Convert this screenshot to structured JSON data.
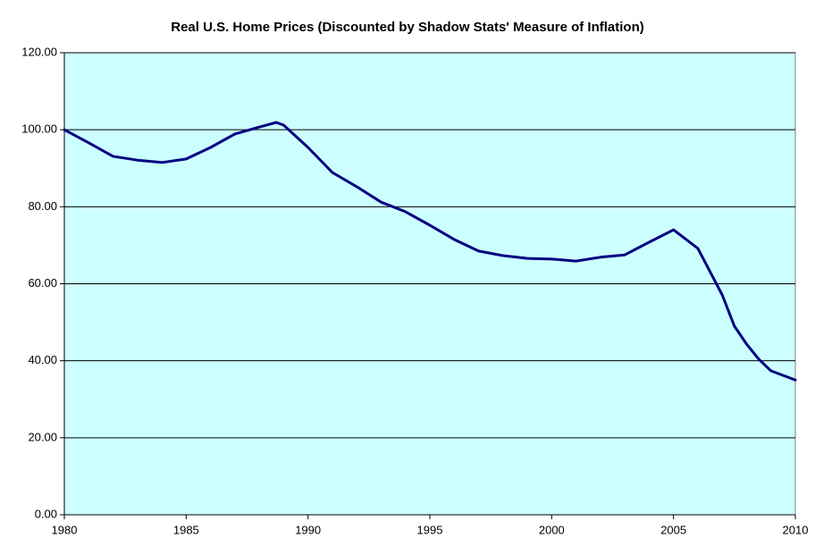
{
  "chart_data": {
    "type": "line",
    "title": "Real U.S. Home Prices (Discounted by Shadow Stats' Measure of Inflation)",
    "x": [
      1980,
      1981,
      1982,
      1983,
      1984,
      1985,
      1986,
      1987,
      1988,
      1988.7,
      1989,
      1990,
      1991,
      1992,
      1993,
      1994,
      1995,
      1996,
      1997,
      1998,
      1999,
      2000,
      2001,
      2002,
      2003,
      2004,
      2005,
      2006,
      2007,
      2007.5,
      2008,
      2008.5,
      2009,
      2010
    ],
    "series": [
      {
        "color": "#000080",
        "values": [
          100,
          96.6,
          93.1,
          92.1,
          91.5,
          92.4,
          95.4,
          98.9,
          100.7,
          101.9,
          101.2,
          95.4,
          88.9,
          85.2,
          81.2,
          78.7,
          75.2,
          71.5,
          68.5,
          67.3,
          66.6,
          66.4,
          65.9,
          66.9,
          67.5,
          70.8,
          74.0,
          69.2,
          57.1,
          49.0,
          44.3,
          40.4,
          37.4,
          35.0
        ]
      }
    ],
    "xlim": [
      1980,
      2010
    ],
    "xticks": [
      1980,
      1985,
      1990,
      1995,
      2000,
      2005,
      2010
    ],
    "ylim": [
      0,
      120
    ],
    "yticks": [
      {
        "value": 0,
        "label": "0.00"
      },
      {
        "value": 20,
        "label": "20.00"
      },
      {
        "value": 40,
        "label": "40.00"
      },
      {
        "value": 60,
        "label": "60.00"
      },
      {
        "value": 80,
        "label": "80.00"
      },
      {
        "value": 100,
        "label": "100.00"
      },
      {
        "value": 120,
        "label": "120.00"
      }
    ],
    "grid": true,
    "background": "#ccffff"
  }
}
